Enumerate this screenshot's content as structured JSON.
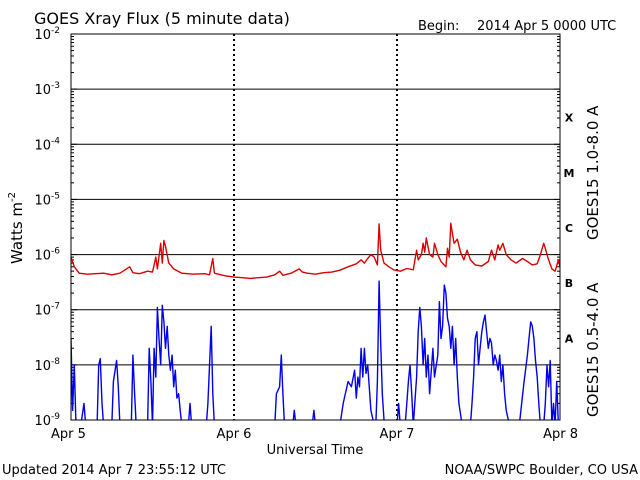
{
  "title": "GOES Xray Flux (5 minute data)",
  "begin_label": "Begin:",
  "begin_value": "2014 Apr 5 0000 UTC",
  "updated": "Updated 2014 Apr  7 23:55:12 UTC",
  "credit": "NOAA/SWPC Boulder, CO USA",
  "colors": {
    "long_channel": "#dd0000",
    "short_channel": "#0000ee",
    "grid": "#000000"
  },
  "chart_data": {
    "type": "line",
    "xlabel": "Universal Time",
    "ylabel_base": "Watts m",
    "ylabel_sup": "-2",
    "y_scale": "log",
    "ylim": [
      1e-09,
      0.01
    ],
    "y_ticks": [
      {
        "base": "10",
        "exp": "-2"
      },
      {
        "base": "10",
        "exp": "-3"
      },
      {
        "base": "10",
        "exp": "-4"
      },
      {
        "base": "10",
        "exp": "-5"
      },
      {
        "base": "10",
        "exp": "-6"
      },
      {
        "base": "10",
        "exp": "-7"
      },
      {
        "base": "10",
        "exp": "-8"
      },
      {
        "base": "10",
        "exp": "-9"
      }
    ],
    "x_ticks": [
      "Apr 5",
      "Apr 6",
      "Apr 7",
      "Apr 8"
    ],
    "xlim_days": [
      0,
      3
    ],
    "flare_classes": [
      {
        "label": "X",
        "value": 0.0001
      },
      {
        "label": "M",
        "value": 1e-05
      },
      {
        "label": "C",
        "value": 1e-06
      },
      {
        "label": "B",
        "value": 1e-07
      },
      {
        "label": "A",
        "value": 1e-08
      }
    ],
    "grid": true,
    "series": [
      {
        "name": "GOES15 1.0-8.0 A",
        "color": "#dd0000",
        "points": [
          [
            0.0,
            9e-07
          ],
          [
            0.02,
            6e-07
          ],
          [
            0.05,
            4.6e-07
          ],
          [
            0.1,
            4.4e-07
          ],
          [
            0.15,
            4.5e-07
          ],
          [
            0.2,
            4.6e-07
          ],
          [
            0.25,
            4.3e-07
          ],
          [
            0.3,
            4.6e-07
          ],
          [
            0.36,
            6e-07
          ],
          [
            0.38,
            4.7e-07
          ],
          [
            0.42,
            4.5e-07
          ],
          [
            0.47,
            5e-07
          ],
          [
            0.5,
            4.8e-07
          ],
          [
            0.52,
            9e-07
          ],
          [
            0.53,
            5.5e-07
          ],
          [
            0.55,
            1.6e-06
          ],
          [
            0.56,
            7e-07
          ],
          [
            0.57,
            1.8e-06
          ],
          [
            0.58,
            1.4e-06
          ],
          [
            0.6,
            7e-07
          ],
          [
            0.63,
            5.5e-07
          ],
          [
            0.68,
            4.6e-07
          ],
          [
            0.75,
            4.4e-07
          ],
          [
            0.82,
            4.5e-07
          ],
          [
            0.85,
            4.3e-07
          ],
          [
            0.87,
            8.5e-07
          ],
          [
            0.88,
            4.6e-07
          ],
          [
            0.95,
            4.1e-07
          ],
          [
            1.0,
            3.9e-07
          ],
          [
            1.05,
            3.8e-07
          ],
          [
            1.1,
            3.7e-07
          ],
          [
            1.15,
            3.8e-07
          ],
          [
            1.2,
            3.9e-07
          ],
          [
            1.25,
            4.3e-07
          ],
          [
            1.28,
            5e-07
          ],
          [
            1.3,
            4.2e-07
          ],
          [
            1.35,
            4.6e-07
          ],
          [
            1.4,
            5.5e-07
          ],
          [
            1.42,
            4.8e-07
          ],
          [
            1.45,
            4.6e-07
          ],
          [
            1.5,
            4.4e-07
          ],
          [
            1.55,
            4.7e-07
          ],
          [
            1.6,
            4.8e-07
          ],
          [
            1.65,
            5.2e-07
          ],
          [
            1.7,
            6e-07
          ],
          [
            1.75,
            6.8e-07
          ],
          [
            1.78,
            8e-07
          ],
          [
            1.8,
            7e-07
          ],
          [
            1.82,
            8.5e-07
          ],
          [
            1.84,
            1e-06
          ],
          [
            1.86,
            9e-07
          ],
          [
            1.88,
            6.5e-07
          ],
          [
            1.89,
            3.6e-06
          ],
          [
            1.9,
            1.2e-06
          ],
          [
            1.92,
            7e-07
          ],
          [
            1.95,
            6e-07
          ],
          [
            1.98,
            5.3e-07
          ],
          [
            2.02,
            5e-07
          ],
          [
            2.06,
            5.6e-07
          ],
          [
            2.1,
            5.3e-07
          ],
          [
            2.12,
            1.2e-06
          ],
          [
            2.13,
            8e-07
          ],
          [
            2.15,
            1e-06
          ],
          [
            2.16,
            1.6e-06
          ],
          [
            2.17,
            1.1e-06
          ],
          [
            2.18,
            2e-06
          ],
          [
            2.2,
            1e-06
          ],
          [
            2.22,
            9e-07
          ],
          [
            2.23,
            1.6e-06
          ],
          [
            2.25,
            1e-06
          ],
          [
            2.27,
            7.5e-07
          ],
          [
            2.3,
            6e-07
          ],
          [
            2.31,
            1.3e-06
          ],
          [
            2.32,
            9e-07
          ],
          [
            2.33,
            3.7e-06
          ],
          [
            2.34,
            2.4e-06
          ],
          [
            2.35,
            1.6e-06
          ],
          [
            2.37,
            1.9e-06
          ],
          [
            2.39,
            1.1e-06
          ],
          [
            2.41,
            8e-07
          ],
          [
            2.43,
            1.2e-06
          ],
          [
            2.45,
            8e-07
          ],
          [
            2.48,
            6.5e-07
          ],
          [
            2.52,
            6.2e-07
          ],
          [
            2.56,
            7.5e-07
          ],
          [
            2.58,
            1.2e-06
          ],
          [
            2.6,
            8e-07
          ],
          [
            2.62,
            1.5e-06
          ],
          [
            2.63,
            1.2e-06
          ],
          [
            2.65,
            1.6e-06
          ],
          [
            2.67,
            1e-06
          ],
          [
            2.7,
            8e-07
          ],
          [
            2.73,
            7e-07
          ],
          [
            2.77,
            8.5e-07
          ],
          [
            2.8,
            7.5e-07
          ],
          [
            2.83,
            6.5e-07
          ],
          [
            2.86,
            6.8e-07
          ],
          [
            2.88,
            1e-06
          ],
          [
            2.9,
            1.6e-06
          ],
          [
            2.91,
            1.3e-06
          ],
          [
            2.93,
            8e-07
          ],
          [
            2.95,
            5.5e-07
          ],
          [
            2.97,
            5e-07
          ],
          [
            2.99,
            8e-07
          ],
          [
            3.0,
            6e-07
          ]
        ]
      },
      {
        "name": "GOES15 0.5-4.0 A",
        "color": "#0000ee",
        "points": [
          [
            0.0,
            3e-08
          ],
          [
            0.01,
            1.5e-09
          ],
          [
            0.02,
            1e-08
          ],
          [
            0.03,
            9e-10
          ],
          [
            0.06,
            8e-10
          ],
          [
            0.08,
            2e-09
          ],
          [
            0.09,
            8e-10
          ],
          [
            0.16,
            8e-10
          ],
          [
            0.17,
            1e-08
          ],
          [
            0.18,
            1.3e-08
          ],
          [
            0.19,
            2e-09
          ],
          [
            0.2,
            8e-10
          ],
          [
            0.25,
            8e-10
          ],
          [
            0.26,
            5e-09
          ],
          [
            0.28,
            1.2e-08
          ],
          [
            0.29,
            4e-09
          ],
          [
            0.3,
            8e-10
          ],
          [
            0.37,
            8e-10
          ],
          [
            0.38,
            1.5e-08
          ],
          [
            0.39,
            3e-09
          ],
          [
            0.4,
            8e-10
          ],
          [
            0.47,
            8e-10
          ],
          [
            0.48,
            2e-08
          ],
          [
            0.49,
            5e-09
          ],
          [
            0.5,
            8e-10
          ],
          [
            0.51,
            2e-08
          ],
          [
            0.52,
            6e-09
          ],
          [
            0.53,
            1.1e-07
          ],
          [
            0.54,
            3e-08
          ],
          [
            0.55,
            1e-08
          ],
          [
            0.56,
            1.2e-07
          ],
          [
            0.57,
            6e-08
          ],
          [
            0.58,
            2e-08
          ],
          [
            0.59,
            5e-08
          ],
          [
            0.6,
            1.5e-08
          ],
          [
            0.61,
            8e-09
          ],
          [
            0.62,
            1.5e-08
          ],
          [
            0.63,
            4e-09
          ],
          [
            0.64,
            8e-09
          ],
          [
            0.65,
            2.5e-09
          ],
          [
            0.66,
            3e-09
          ],
          [
            0.67,
            1.5e-09
          ],
          [
            0.68,
            8e-10
          ],
          [
            0.72,
            8e-10
          ],
          [
            0.73,
            2e-09
          ],
          [
            0.74,
            8e-10
          ],
          [
            0.83,
            8e-10
          ],
          [
            0.84,
            2e-09
          ],
          [
            0.86,
            5e-08
          ],
          [
            0.87,
            3e-09
          ],
          [
            0.88,
            8e-10
          ],
          [
            0.95,
            8e-10
          ],
          [
            1.0,
            8e-10
          ],
          [
            1.1,
            8e-10
          ],
          [
            1.2,
            8e-10
          ],
          [
            1.25,
            8e-10
          ],
          [
            1.26,
            3e-09
          ],
          [
            1.28,
            4e-09
          ],
          [
            1.29,
            1.5e-08
          ],
          [
            1.3,
            3e-09
          ],
          [
            1.31,
            8e-10
          ],
          [
            1.36,
            8e-10
          ],
          [
            1.37,
            1.5e-09
          ],
          [
            1.38,
            8e-10
          ],
          [
            1.45,
            8e-10
          ],
          [
            1.48,
            8e-10
          ],
          [
            1.49,
            1.5e-09
          ],
          [
            1.5,
            8e-10
          ],
          [
            1.65,
            8e-10
          ],
          [
            1.67,
            2e-09
          ],
          [
            1.7,
            5e-09
          ],
          [
            1.72,
            4e-09
          ],
          [
            1.74,
            8e-09
          ],
          [
            1.75,
            2.5e-09
          ],
          [
            1.76,
            6e-09
          ],
          [
            1.77,
            4e-09
          ],
          [
            1.78,
            2e-08
          ],
          [
            1.79,
            6e-09
          ],
          [
            1.8,
            2e-08
          ],
          [
            1.81,
            7e-09
          ],
          [
            1.82,
            1e-08
          ],
          [
            1.84,
            1.5e-09
          ],
          [
            1.86,
            8e-10
          ],
          [
            1.87,
            8e-10
          ],
          [
            1.88,
            5e-09
          ],
          [
            1.89,
            3.3e-07
          ],
          [
            1.9,
            2.5e-08
          ],
          [
            1.91,
            3e-09
          ],
          [
            1.92,
            1e-09
          ],
          [
            1.94,
            8e-10
          ],
          [
            2.0,
            8e-10
          ],
          [
            2.01,
            2e-09
          ],
          [
            2.02,
            8e-10
          ],
          [
            2.05,
            8e-10
          ],
          [
            2.06,
            2e-09
          ],
          [
            2.07,
            5e-09
          ],
          [
            2.08,
            1e-08
          ],
          [
            2.09,
            3e-09
          ],
          [
            2.1,
            8e-10
          ],
          [
            2.12,
            6e-09
          ],
          [
            2.13,
            4e-08
          ],
          [
            2.14,
            1.1e-07
          ],
          [
            2.15,
            5e-08
          ],
          [
            2.16,
            1e-08
          ],
          [
            2.17,
            3e-08
          ],
          [
            2.18,
            6e-09
          ],
          [
            2.19,
            1.5e-08
          ],
          [
            2.2,
            3e-09
          ],
          [
            2.22,
            2e-08
          ],
          [
            2.23,
            6e-09
          ],
          [
            2.25,
            1.5e-08
          ],
          [
            2.26,
            1.4e-07
          ],
          [
            2.27,
            3e-08
          ],
          [
            2.28,
            5e-08
          ],
          [
            2.29,
            2.8e-07
          ],
          [
            2.3,
            2e-07
          ],
          [
            2.31,
            7e-08
          ],
          [
            2.32,
            5e-08
          ],
          [
            2.33,
            2e-08
          ],
          [
            2.34,
            5e-08
          ],
          [
            2.35,
            1e-08
          ],
          [
            2.36,
            3e-08
          ],
          [
            2.37,
            6e-09
          ],
          [
            2.38,
            2e-09
          ],
          [
            2.4,
            8e-10
          ],
          [
            2.45,
            8e-10
          ],
          [
            2.46,
            2e-09
          ],
          [
            2.47,
            6e-09
          ],
          [
            2.48,
            3e-08
          ],
          [
            2.49,
            4e-08
          ],
          [
            2.5,
            1e-08
          ],
          [
            2.51,
            2e-08
          ],
          [
            2.52,
            4e-08
          ],
          [
            2.53,
            6e-08
          ],
          [
            2.54,
            8e-08
          ],
          [
            2.55,
            4e-08
          ],
          [
            2.56,
            2e-08
          ],
          [
            2.57,
            3e-08
          ],
          [
            2.58,
            2.5e-08
          ],
          [
            2.59,
            1e-08
          ],
          [
            2.6,
            1.5e-08
          ],
          [
            2.61,
            1.2e-08
          ],
          [
            2.62,
            8e-09
          ],
          [
            2.63,
            1.5e-08
          ],
          [
            2.64,
            5e-09
          ],
          [
            2.65,
            1e-08
          ],
          [
            2.66,
            3e-09
          ],
          [
            2.67,
            1.5e-09
          ],
          [
            2.69,
            8e-10
          ],
          [
            2.75,
            8e-10
          ],
          [
            2.76,
            1.5e-09
          ],
          [
            2.78,
            5e-09
          ],
          [
            2.8,
            1.5e-08
          ],
          [
            2.81,
            3e-08
          ],
          [
            2.82,
            6e-08
          ],
          [
            2.83,
            5e-08
          ],
          [
            2.84,
            3e-08
          ],
          [
            2.85,
            1.2e-08
          ],
          [
            2.86,
            6e-09
          ],
          [
            2.87,
            2e-09
          ],
          [
            2.88,
            8e-10
          ],
          [
            2.9,
            8e-10
          ],
          [
            2.91,
            2e-09
          ],
          [
            2.92,
            1e-08
          ],
          [
            2.93,
            4e-09
          ],
          [
            2.94,
            1.2e-08
          ],
          [
            2.95,
            8e-10
          ],
          [
            2.96,
            2e-09
          ],
          [
            2.97,
            8e-10
          ],
          [
            2.98,
            5e-09
          ],
          [
            2.99,
            8e-10
          ],
          [
            3.0,
            1e-09
          ]
        ]
      }
    ]
  }
}
